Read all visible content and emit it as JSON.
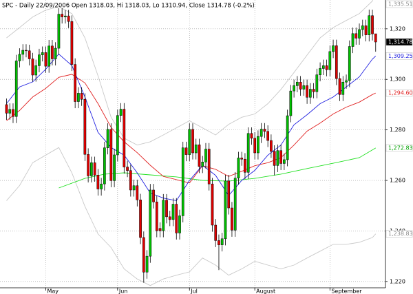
{
  "chart_data": {
    "type": "candlestick",
    "title": "SPC - Daily 22/09/2006 Open 1318.03, Hi 1318.03, Lo 1310.94, Close 1314.78 (-0.2%)",
    "xlim": [
      -2,
      116
    ],
    "ylim": [
      1217.5,
      1331.4
    ],
    "yticks": [
      {
        "value": 1220,
        "label": "1,220"
      },
      {
        "value": 1240,
        "label": "1,240"
      },
      {
        "value": 1260,
        "label": "1,260"
      },
      {
        "value": 1280,
        "label": "1,280"
      },
      {
        "value": 1300,
        "label": "1,300"
      },
      {
        "value": 1320,
        "label": "1,320"
      }
    ],
    "xticks": [
      {
        "value": 12,
        "label": "May"
      },
      {
        "value": 34,
        "label": "Jun"
      },
      {
        "value": 56,
        "label": "Jul"
      },
      {
        "value": 76,
        "label": "August"
      },
      {
        "value": 99,
        "label": "September"
      }
    ],
    "grid": true,
    "up_color": "#00c000",
    "down_color": "#e00000",
    "ohlc": {
      "last_label": "1,314.78",
      "open": [
        1290.0,
        1286.6,
        1288.1,
        1285.3,
        1307.3,
        1309.9,
        1311.5,
        1311.3,
        1308.1,
        1301.7,
        1305.4,
        1309.7,
        1310.6,
        1305.2,
        1313.2,
        1308.1,
        1312.3,
        1325.8,
        1324.7,
        1325.1,
        1322.9,
        1305.9,
        1291.2,
        1294.5,
        1292.1,
        1270.3,
        1261.8,
        1267.0,
        1262.1,
        1256.6,
        1258.6,
        1272.9,
        1280.2,
        1259.9,
        1270.1,
        1285.7,
        1288.2,
        1265.3,
        1263.9,
        1256.2,
        1257.9,
        1252.3,
        1237.4,
        1223.7,
        1230.0,
        1256.2,
        1251.5,
        1241.0,
        1240.1,
        1252.2,
        1245.6,
        1244.5,
        1250.6,
        1239.2,
        1246.0,
        1272.9,
        1270.2,
        1280.2,
        1270.9,
        1274.1,
        1265.5,
        1267.3,
        1272.4,
        1258.6,
        1242.3,
        1236.2,
        1234.5,
        1236.9,
        1259.8,
        1249.1,
        1240.3,
        1260.9,
        1268.9,
        1268.4,
        1263.2,
        1278.6,
        1276.7,
        1270.9,
        1277.4,
        1280.3,
        1279.4,
        1275.8,
        1271.5,
        1265.9,
        1271.8,
        1266.7,
        1268.2,
        1285.6,
        1295.4,
        1297.5,
        1298.9,
        1296.1,
        1297.5,
        1292.9,
        1296.1,
        1295.1,
        1301.8,
        1304.3,
        1305.4,
        1303.8,
        1311.0,
        1313.3,
        1300.3,
        1294.0,
        1298.9,
        1299.5,
        1313.0,
        1318.1,
        1316.3,
        1319.7,
        1321.2,
        1317.6,
        1325.2,
        1318.03
      ],
      "high": [
        1292.4,
        1290.5,
        1290.5,
        1309.7,
        1312.3,
        1313.9,
        1313.9,
        1313.7,
        1310.5,
        1307.8,
        1312.1,
        1313.0,
        1313.0,
        1315.6,
        1315.6,
        1314.7,
        1328.2,
        1328.2,
        1327.5,
        1327.5,
        1325.3,
        1308.3,
        1296.9,
        1296.9,
        1294.5,
        1272.7,
        1269.4,
        1269.4,
        1264.5,
        1261.0,
        1275.3,
        1282.6,
        1282.6,
        1272.5,
        1288.1,
        1290.6,
        1290.6,
        1267.7,
        1266.3,
        1260.3,
        1260.3,
        1254.7,
        1239.8,
        1232.4,
        1258.6,
        1258.6,
        1253.9,
        1243.4,
        1254.6,
        1254.6,
        1248.0,
        1253.0,
        1253.0,
        1248.4,
        1275.3,
        1275.3,
        1282.6,
        1282.6,
        1276.5,
        1276.5,
        1269.7,
        1274.8,
        1274.8,
        1261.0,
        1244.7,
        1238.6,
        1239.3,
        1262.2,
        1262.2,
        1251.5,
        1263.3,
        1271.3,
        1271.3,
        1270.8,
        1281.0,
        1281.0,
        1279.1,
        1279.8,
        1282.7,
        1282.7,
        1281.8,
        1278.2,
        1273.9,
        1274.2,
        1274.2,
        1270.6,
        1288.0,
        1297.8,
        1299.9,
        1301.3,
        1301.3,
        1299.9,
        1299.9,
        1298.5,
        1298.5,
        1304.2,
        1306.7,
        1307.8,
        1307.8,
        1313.4,
        1315.7,
        1315.7,
        1302.7,
        1301.3,
        1301.9,
        1315.4,
        1320.5,
        1320.5,
        1322.1,
        1323.6,
        1323.6,
        1327.6,
        1327.6,
        1318.03
      ],
      "low": [
        1284.0,
        1284.0,
        1282.7,
        1282.7,
        1304.7,
        1307.3,
        1308.7,
        1305.5,
        1299.1,
        1299.1,
        1302.8,
        1307.1,
        1302.6,
        1302.6,
        1305.5,
        1305.5,
        1309.7,
        1322.1,
        1322.1,
        1320.3,
        1303.3,
        1288.6,
        1288.6,
        1289.5,
        1267.7,
        1259.2,
        1259.2,
        1259.5,
        1254.0,
        1254.0,
        1256.0,
        1270.3,
        1257.3,
        1257.3,
        1267.5,
        1283.1,
        1262.7,
        1261.3,
        1253.6,
        1253.6,
        1249.7,
        1234.8,
        1219.5,
        1221.1,
        1227.4,
        1248.9,
        1237.5,
        1237.5,
        1237.5,
        1243.0,
        1241.9,
        1241.9,
        1236.6,
        1236.6,
        1243.4,
        1267.6,
        1267.6,
        1268.3,
        1268.3,
        1262.9,
        1262.9,
        1264.7,
        1256.0,
        1239.7,
        1233.6,
        1224.5,
        1231.9,
        1234.3,
        1246.5,
        1237.7,
        1237.7,
        1258.3,
        1265.8,
        1260.6,
        1260.6,
        1274.1,
        1268.3,
        1268.3,
        1274.8,
        1276.8,
        1273.2,
        1268.9,
        1262.0,
        1263.3,
        1264.1,
        1264.1,
        1265.6,
        1283.0,
        1292.8,
        1294.9,
        1293.5,
        1293.5,
        1290.3,
        1290.3,
        1292.5,
        1292.5,
        1299.2,
        1301.7,
        1301.2,
        1301.2,
        1308.4,
        1297.7,
        1291.4,
        1291.4,
        1296.3,
        1296.9,
        1310.4,
        1313.7,
        1313.7,
        1317.1,
        1315.0,
        1315.0,
        1315.4,
        1310.94
      ],
      "close": [
        1286.6,
        1288.1,
        1285.3,
        1307.3,
        1309.9,
        1311.5,
        1311.3,
        1308.1,
        1301.7,
        1305.4,
        1309.7,
        1310.6,
        1305.2,
        1313.2,
        1308.1,
        1312.3,
        1325.8,
        1324.7,
        1325.1,
        1322.9,
        1305.9,
        1291.2,
        1294.5,
        1292.1,
        1270.3,
        1261.8,
        1267.0,
        1262.1,
        1256.6,
        1258.6,
        1272.9,
        1280.2,
        1259.9,
        1270.1,
        1285.7,
        1288.2,
        1265.3,
        1263.9,
        1256.2,
        1257.9,
        1252.3,
        1237.4,
        1223.7,
        1230.0,
        1256.2,
        1251.5,
        1240.1,
        1240.1,
        1252.2,
        1245.6,
        1244.5,
        1250.6,
        1239.2,
        1246.0,
        1272.9,
        1270.2,
        1280.2,
        1270.9,
        1274.1,
        1265.5,
        1267.3,
        1272.4,
        1258.6,
        1242.3,
        1236.2,
        1234.5,
        1236.9,
        1259.8,
        1249.1,
        1240.3,
        1260.9,
        1268.9,
        1268.4,
        1263.2,
        1278.6,
        1276.7,
        1270.9,
        1277.4,
        1280.3,
        1279.4,
        1275.8,
        1271.5,
        1265.9,
        1271.8,
        1266.7,
        1268.2,
        1285.6,
        1295.4,
        1297.5,
        1298.9,
        1296.1,
        1297.5,
        1292.9,
        1296.1,
        1295.1,
        1301.8,
        1304.3,
        1305.4,
        1303.8,
        1311.0,
        1313.3,
        1300.3,
        1294.0,
        1298.9,
        1299.5,
        1313.0,
        1318.1,
        1316.3,
        1319.7,
        1321.2,
        1317.6,
        1325.2,
        1318.0,
        1314.78
      ]
    },
    "series": [
      {
        "color": "#c8c8c8",
        "label_color": "#888888",
        "last_label": "1,335.51",
        "x": [
          0,
          4,
          8,
          12,
          16,
          20,
          24,
          28,
          32,
          36,
          40,
          44,
          48,
          52,
          56,
          60,
          64,
          68,
          72,
          76,
          80,
          84,
          88,
          92,
          96,
          100,
          104,
          108,
          112,
          113
        ],
        "values": [
          1316.4,
          1320.5,
          1324.7,
          1327.4,
          1328.8,
          1326,
          1316.4,
          1301.4,
          1285,
          1276.7,
          1274,
          1275.3,
          1278,
          1280.8,
          1283.6,
          1280.8,
          1278,
          1282.2,
          1285,
          1286.3,
          1290.4,
          1296,
          1302.7,
          1309.6,
          1316.4,
          1320.5,
          1323.3,
          1326,
          1331,
          1335.51
        ]
      },
      {
        "color": "#c8c8c8",
        "label_color": "#888888",
        "last_label": "1,238.83",
        "x": [
          0,
          4,
          8,
          12,
          16,
          20,
          24,
          28,
          32,
          36,
          40,
          44,
          48,
          52,
          56,
          60,
          64,
          68,
          72,
          76,
          80,
          84,
          88,
          92,
          96,
          100,
          104,
          108,
          112,
          113
        ],
        "values": [
          1252,
          1258,
          1267,
          1270,
          1273,
          1263,
          1249.7,
          1238.8,
          1233.4,
          1225,
          1221,
          1218.4,
          1221,
          1222.5,
          1223.8,
          1229.3,
          1226.5,
          1222.5,
          1225,
          1228,
          1226.5,
          1225,
          1226.5,
          1229.3,
          1232,
          1234.7,
          1234.7,
          1235.5,
          1237.4,
          1238.83
        ]
      },
      {
        "color": "#20e020",
        "label_color": "#00a000",
        "last_label": "1,272.83",
        "x": [
          16,
          24,
          30,
          36,
          44,
          52,
          60,
          68,
          76,
          84,
          92,
          100,
          108,
          113
        ],
        "values": [
          1257,
          1260.8,
          1262.5,
          1263,
          1262.2,
          1261.4,
          1260,
          1259.7,
          1260.8,
          1262.5,
          1264.7,
          1266.8,
          1269,
          1272.83
        ]
      },
      {
        "color": "#e02020",
        "label_color": "#e02020",
        "last_label": "1,294.60",
        "x": [
          0,
          4,
          8,
          12,
          16,
          20,
          24,
          28,
          32,
          36,
          40,
          44,
          48,
          52,
          56,
          60,
          64,
          68,
          72,
          76,
          80,
          84,
          88,
          92,
          96,
          100,
          104,
          108,
          112,
          113
        ],
        "values": [
          1283.6,
          1287.7,
          1293,
          1296.4,
          1300.8,
          1302,
          1298.6,
          1290.4,
          1281,
          1275.3,
          1271,
          1266,
          1261.6,
          1260.3,
          1259,
          1265.8,
          1264.4,
          1261.6,
          1263.6,
          1265.8,
          1267,
          1269,
          1274,
          1279.5,
          1282.7,
          1286.3,
          1289,
          1291,
          1294,
          1294.6
        ]
      },
      {
        "color": "#2020e0",
        "label_color": "#2020e0",
        "last_label": "1,309.25",
        "x": [
          0,
          4,
          8,
          12,
          16,
          20,
          24,
          28,
          32,
          36,
          40,
          44,
          48,
          52,
          56,
          60,
          64,
          68,
          72,
          76,
          80,
          84,
          88,
          92,
          96,
          100,
          104,
          108,
          112,
          113
        ],
        "values": [
          1290.4,
          1297,
          1299,
          1304,
          1310,
          1305.5,
          1293,
          1279,
          1273,
          1270,
          1263,
          1255,
          1253,
          1252,
          1260,
          1266,
          1262,
          1254,
          1260,
          1264,
          1270,
          1274,
          1282,
          1286,
          1290.4,
          1293,
          1297,
          1301,
          1308,
          1309.25
        ]
      }
    ]
  }
}
